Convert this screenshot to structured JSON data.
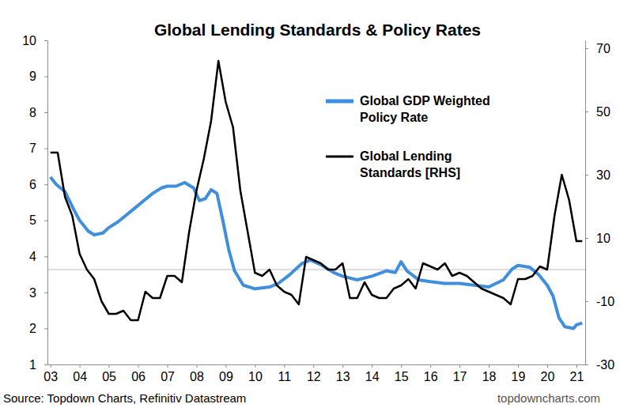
{
  "chart_data": {
    "type": "line",
    "title": "Global Lending Standards & Policy Rates",
    "source": "Source: Topdown Charts, Refinitiv Datastream",
    "watermark": "topdowncharts.com",
    "xlim": [
      2002.9,
      2021.3
    ],
    "xticks": [
      {
        "value": 2003,
        "label": "03"
      },
      {
        "value": 2004,
        "label": "04"
      },
      {
        "value": 2005,
        "label": "05"
      },
      {
        "value": 2006,
        "label": "06"
      },
      {
        "value": 2007,
        "label": "07"
      },
      {
        "value": 2008,
        "label": "08"
      },
      {
        "value": 2009,
        "label": "09"
      },
      {
        "value": 2010,
        "label": "10"
      },
      {
        "value": 2011,
        "label": "11"
      },
      {
        "value": 2012,
        "label": "12"
      },
      {
        "value": 2013,
        "label": "13"
      },
      {
        "value": 2014,
        "label": "14"
      },
      {
        "value": 2015,
        "label": "15"
      },
      {
        "value": 2016,
        "label": "16"
      },
      {
        "value": 2017,
        "label": "17"
      },
      {
        "value": 2018,
        "label": "18"
      },
      {
        "value": 2019,
        "label": "19"
      },
      {
        "value": 2020,
        "label": "20"
      },
      {
        "value": 2021,
        "label": "21"
      }
    ],
    "ylim": [
      1,
      10
    ],
    "yticks": [
      1,
      2,
      3,
      4,
      5,
      6,
      7,
      8,
      9,
      10
    ],
    "y2lim": [
      -30,
      72.5
    ],
    "y2ticks": [
      -30,
      -10,
      10,
      30,
      50,
      70
    ],
    "hline": {
      "value": 0,
      "axis": "y2",
      "color": "#bfbfbf"
    },
    "legend": "top-right",
    "series": [
      {
        "name": "Global GDP Weighted Policy Rate",
        "color": "#3f8fdc",
        "axis": "y",
        "x": [
          2003.0,
          2003.2,
          2003.5,
          2003.8,
          2004.0,
          2004.3,
          2004.5,
          2004.8,
          2005.0,
          2005.3,
          2005.6,
          2005.9,
          2006.2,
          2006.5,
          2006.8,
          2007.0,
          2007.3,
          2007.6,
          2007.9,
          2008.1,
          2008.3,
          2008.5,
          2008.7,
          2008.9,
          2009.1,
          2009.3,
          2009.6,
          2010.0,
          2010.5,
          2010.8,
          2011.2,
          2011.6,
          2011.9,
          2012.3,
          2012.7,
          2013.0,
          2013.5,
          2014.0,
          2014.5,
          2014.8,
          2015.0,
          2015.2,
          2015.6,
          2016.0,
          2016.5,
          2017.0,
          2017.5,
          2018.0,
          2018.5,
          2018.8,
          2019.0,
          2019.4,
          2019.7,
          2020.0,
          2020.2,
          2020.4,
          2020.6,
          2020.9,
          2021.0,
          2021.2
        ],
        "values": [
          6.2,
          6.0,
          5.8,
          5.3,
          5.0,
          4.7,
          4.6,
          4.65,
          4.8,
          4.95,
          5.15,
          5.35,
          5.55,
          5.75,
          5.9,
          5.95,
          5.95,
          6.05,
          5.9,
          5.55,
          5.6,
          5.85,
          5.75,
          5.0,
          4.2,
          3.6,
          3.2,
          3.1,
          3.15,
          3.25,
          3.5,
          3.8,
          3.9,
          3.75,
          3.55,
          3.45,
          3.35,
          3.45,
          3.6,
          3.55,
          3.85,
          3.6,
          3.35,
          3.3,
          3.25,
          3.25,
          3.2,
          3.15,
          3.35,
          3.65,
          3.75,
          3.7,
          3.5,
          3.2,
          2.9,
          2.3,
          2.05,
          2.0,
          2.1,
          2.15
        ]
      },
      {
        "name": "Global Lending Standards [RHS]",
        "color": "#000000",
        "axis": "y2",
        "x": [
          2003.0,
          2003.25,
          2003.5,
          2003.75,
          2004.0,
          2004.25,
          2004.5,
          2004.75,
          2005.0,
          2005.25,
          2005.5,
          2005.75,
          2006.0,
          2006.25,
          2006.5,
          2006.75,
          2007.0,
          2007.25,
          2007.5,
          2007.75,
          2008.0,
          2008.25,
          2008.5,
          2008.75,
          2009.0,
          2009.25,
          2009.5,
          2009.75,
          2010.0,
          2010.25,
          2010.5,
          2010.75,
          2011.0,
          2011.25,
          2011.5,
          2011.75,
          2012.0,
          2012.25,
          2012.5,
          2012.75,
          2013.0,
          2013.25,
          2013.5,
          2013.75,
          2014.0,
          2014.25,
          2014.5,
          2014.75,
          2015.0,
          2015.25,
          2015.5,
          2015.75,
          2016.0,
          2016.25,
          2016.5,
          2016.75,
          2017.0,
          2017.25,
          2017.5,
          2017.75,
          2018.0,
          2018.25,
          2018.5,
          2018.75,
          2019.0,
          2019.25,
          2019.5,
          2019.75,
          2020.0,
          2020.25,
          2020.5,
          2020.75,
          2021.0,
          2021.2
        ],
        "values": [
          37,
          37,
          23,
          17,
          5,
          0,
          -3,
          -10,
          -14,
          -14,
          -13,
          -16,
          -16,
          -7,
          -9,
          -9,
          -2,
          -2,
          -4,
          12,
          25,
          35,
          47,
          66,
          53,
          45,
          25,
          12,
          -1,
          -2,
          0,
          -5,
          -7,
          -8,
          -11,
          4,
          3,
          2,
          0,
          0,
          2,
          -9,
          -9,
          -4,
          -8,
          -9,
          -9,
          -6,
          -5,
          -3,
          -6,
          2,
          1,
          0,
          2,
          -2,
          -1,
          -2,
          -4,
          -6,
          -7,
          -8,
          -9,
          -11,
          -3,
          -3,
          -2,
          1,
          0,
          17,
          30,
          22,
          9,
          9
        ]
      }
    ]
  }
}
